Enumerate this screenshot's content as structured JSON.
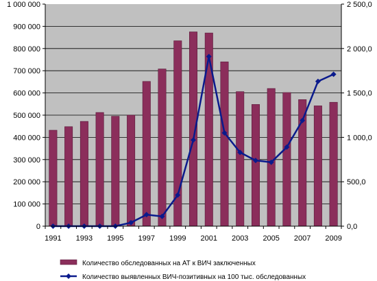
{
  "colors": {
    "plot_background": "#c0c0c0",
    "bar_fill": "#8b2e5b",
    "bar_stroke": "#5a1a3a",
    "line": "#0a1a8c",
    "axis": "#000000"
  },
  "chart_data": {
    "type": "bar",
    "secondary_type": "line",
    "title": "",
    "xlabel": "",
    "ylabel": "",
    "grid": "horizontal",
    "legend_position": "bottom",
    "x": [
      1991,
      1992,
      1993,
      1994,
      1995,
      1996,
      1997,
      1998,
      1999,
      2000,
      2001,
      2002,
      2003,
      2004,
      2005,
      2006,
      2007,
      2008,
      2009
    ],
    "x_tick_labels": [
      "1991",
      "1993",
      "1995",
      "1997",
      "1999",
      "2001",
      "2003",
      "2005",
      "2007",
      "2009"
    ],
    "y_left_range": [
      0,
      1000000
    ],
    "y_left_tick_labels": [
      "0",
      "100 000",
      "200 000",
      "300 000",
      "400 000",
      "500 000",
      "600 000",
      "700 000",
      "800 000",
      "900 000",
      "1 000 000"
    ],
    "y_right_range": [
      0,
      2500
    ],
    "y_right_tick_labels": [
      "0,0",
      "500,0",
      "1 000,0",
      "1 500,0",
      "2 000,0",
      "2 500,0"
    ],
    "series": [
      {
        "name": "Количество обследованных на АТ к ВИЧ заключенных",
        "type": "bar",
        "axis": "left",
        "values": [
          432000,
          448000,
          472000,
          512000,
          495000,
          500000,
          652000,
          708000,
          835000,
          875000,
          870000,
          740000,
          606000,
          548000,
          620000,
          602000,
          570000,
          542000,
          558000
        ]
      },
      {
        "name": "Количество выявленных ВИЧ-позитивных на 100 тыс. обследованных",
        "type": "line",
        "axis": "right",
        "values": [
          0,
          0,
          0,
          0,
          0,
          40,
          130,
          110,
          350,
          970,
          1910,
          1050,
          830,
          740,
          720,
          890,
          1190,
          1630,
          1710
        ]
      }
    ]
  }
}
